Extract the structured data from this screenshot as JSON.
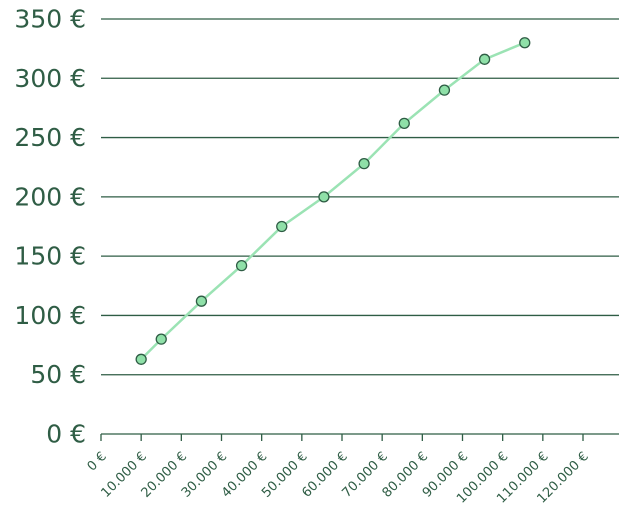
{
  "chart_data": {
    "type": "line",
    "x": [
      10000,
      15000,
      25000,
      35000,
      45000,
      55500,
      65500,
      75500,
      85500,
      95500,
      105500
    ],
    "series": [
      {
        "values": [
          63,
          80,
          112,
          142,
          175,
          200,
          228,
          262,
          290,
          316,
          330
        ]
      }
    ],
    "x_ticks": [
      0,
      10000,
      20000,
      30000,
      40000,
      50000,
      60000,
      70000,
      80000,
      90000,
      100000,
      110000,
      120000
    ],
    "x_tick_labels": [
      "0 €",
      "10.000 €",
      "20.000 €",
      "30.000 €",
      "40.000 €",
      "50.000 €",
      "60.000 €",
      "70.000 €",
      "80.000 €",
      "90.000 €",
      "100.000 €",
      "110.000 €",
      "120.000 €"
    ],
    "y_ticks": [
      0,
      50,
      100,
      150,
      200,
      250,
      300,
      350
    ],
    "y_tick_labels": [
      "0 €",
      "50 €",
      "100 €",
      "150 €",
      "200 €",
      "250 €",
      "300 €",
      "350 €"
    ],
    "xlim": [
      0,
      120000
    ],
    "ylim": [
      0,
      350
    ],
    "grid": "horizontal",
    "colors": {
      "line": "#9be3b4",
      "marker_fill": "#8fe0a8",
      "axis": "#2f5d45"
    }
  }
}
